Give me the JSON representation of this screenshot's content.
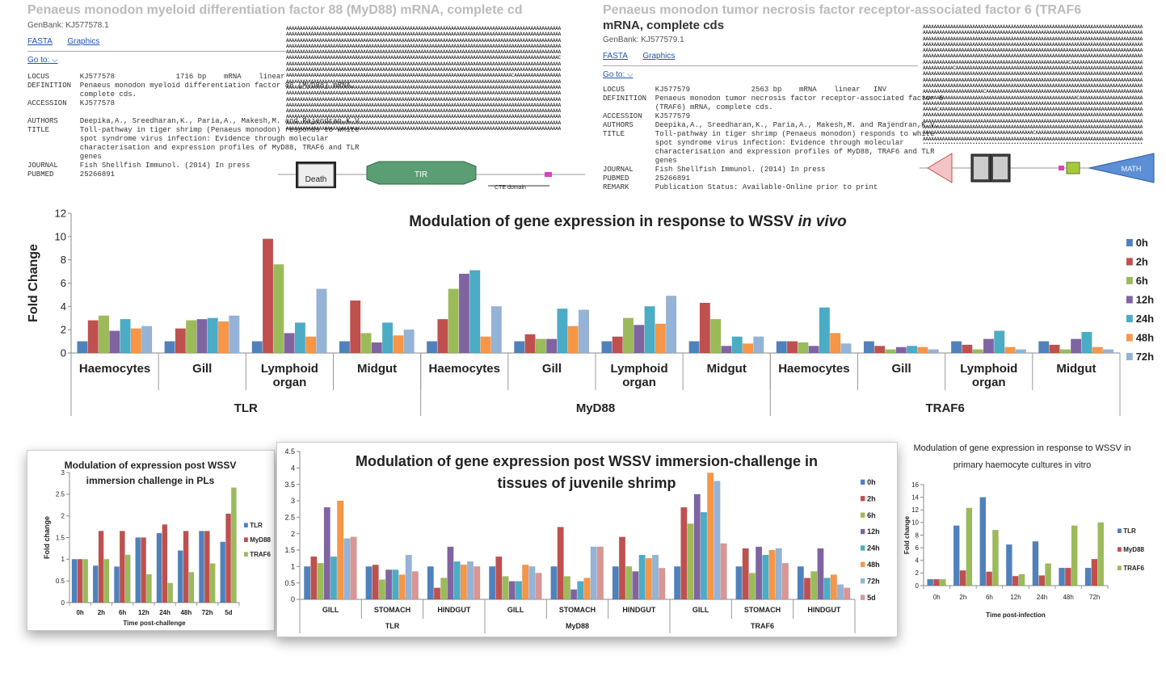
{
  "genbank_left": {
    "title": "Penaeus monodon myeloid differentiation factor 88 (MyD88) mRNA, complete cd",
    "accession_line": "GenBank: KJ577578.1",
    "links": [
      "FASTA",
      "Graphics"
    ],
    "goto": "Go to:",
    "record": "LOCUS       KJ577578              1716 bp    mRNA    linear\nDEFINITION  Penaeus monodon myeloid differentiation factor 88 (MyD88) mRNA,\n            complete cds.\nACCESSION   KJ577578\n\nAUTHORS     Deepika,A., Sreedharan,K., Paria,A., Makesh,M. and Rajendran,K.V.\nTITLE       Toll-pathway in tiger shrimp (Penaeus monodon) responds to white\n            spot syndrome virus infection: Evidence through molecular\n            characterisation and expression profiles of MyD88, TRAF6 and TLR\n            genes\nJOURNAL     Fish Shellfish Immunol. (2014) In press\nPUBMED      25266891",
    "domains": [
      "Death",
      "TIR",
      "CTE domain"
    ]
  },
  "genbank_right": {
    "title": "Penaeus monodon tumor necrosis factor receptor-associated factor 6 (TRAF6",
    "title2": "mRNA, complete cds",
    "accession_line": "GenBank: KJ577579.1",
    "links": [
      "FASTA",
      "Graphics"
    ],
    "goto": "Go to:",
    "record": "LOCUS       KJ577579              2563 bp    mRNA    linear   INV\nDEFINITION  Penaeus monodon tumor necrosis factor receptor-associated factor 6\n            (TRAF6) mRNA, complete cds.\nACCESSION   KJ577579\nAUTHORS     Deepika,A., Sreedharan,K., Paria,A., Makesh,M. and Rajendran,K.V.\nTITLE       Toll-pathway in tiger shrimp (Penaeus monodon) responds to white\n            spot syndrome virus infection: Evidence through molecular\n            characterisation and expression profiles of MyD88, TRAF6 and TLR\n            genes\nJOURNAL     Fish Shellfish Immunol. (2014) In press\nPUBMED      25266891\nREMARK      Publication Status: Available-Online prior to print",
    "domains": [
      "MATH"
    ]
  },
  "chart_data": [
    {
      "id": "invivo",
      "type": "bar",
      "title": "Modulation of gene expression in response to WSSV",
      "title_italic": "in vivo",
      "ylabel": "Fold Change",
      "ylim": [
        0,
        12
      ],
      "yticks": [
        0,
        2,
        4,
        6,
        8,
        10,
        12
      ],
      "groups": [
        "TLR",
        "MyD88",
        "TRAF6"
      ],
      "categories": [
        "Haemocytes",
        "Gill",
        "Lymphoid organ",
        "Midgut",
        "Haemocytes",
        "Gill",
        "Lymphoid organ",
        "Midgut",
        "Haemocytes",
        "Gill",
        "Lymphoid organ",
        "Midgut"
      ],
      "series": [
        {
          "name": "0h",
          "color": "#4f81bd",
          "values": [
            1,
            1,
            1,
            1,
            1,
            1,
            1,
            1,
            1,
            1,
            1,
            1
          ]
        },
        {
          "name": "2h",
          "color": "#c0504d",
          "values": [
            2.8,
            2.1,
            9.8,
            4.5,
            2.9,
            1.6,
            1.4,
            4.3,
            1.0,
            0.6,
            0.7,
            0.7
          ]
        },
        {
          "name": "6h",
          "color": "#9bbb59",
          "values": [
            3.2,
            2.8,
            7.6,
            1.7,
            5.5,
            1.2,
            3.0,
            2.9,
            0.9,
            0.3,
            0.3,
            0.3
          ]
        },
        {
          "name": "12h",
          "color": "#8064a2",
          "values": [
            1.9,
            2.9,
            1.7,
            0.9,
            6.8,
            1.2,
            2.4,
            0.6,
            0.6,
            0.5,
            1.2,
            1.2
          ]
        },
        {
          "name": "24h",
          "color": "#4bacc6",
          "values": [
            2.9,
            3.0,
            2.6,
            2.6,
            7.1,
            3.8,
            4.0,
            1.4,
            3.9,
            0.6,
            1.9,
            1.8
          ]
        },
        {
          "name": "48h",
          "color": "#f79646",
          "values": [
            2.1,
            2.7,
            1.4,
            1.5,
            1.4,
            2.3,
            2.5,
            0.8,
            1.7,
            0.5,
            0.5,
            0.5
          ]
        },
        {
          "name": "72h",
          "color": "#95b3d7",
          "values": [
            2.3,
            3.2,
            5.5,
            2.0,
            4.0,
            3.7,
            4.9,
            1.4,
            0.8,
            0.3,
            0.3,
            0.3
          ]
        }
      ]
    },
    {
      "id": "pls",
      "type": "bar",
      "title": "Modulation of expression post WSSV immersion challenge in PLs",
      "title_lines": [
        "Modulation of expression post WSSV",
        "immersion challenge in PLs"
      ],
      "ylabel": "Fold change",
      "xlabel": "Time post-challenge",
      "ylim": [
        0,
        3
      ],
      "yticks": [
        0,
        0.5,
        1,
        1.5,
        2,
        2.5,
        3
      ],
      "categories": [
        "0h",
        "2h",
        "6h",
        "12h",
        "24h",
        "48h",
        "72h",
        "5d"
      ],
      "series": [
        {
          "name": "TLR",
          "color": "#4f81bd",
          "values": [
            1.0,
            0.85,
            0.83,
            1.5,
            1.6,
            1.2,
            1.65,
            1.4
          ]
        },
        {
          "name": "MyD88",
          "color": "#c0504d",
          "values": [
            1.0,
            1.65,
            1.65,
            1.5,
            1.8,
            1.65,
            1.65,
            2.05
          ]
        },
        {
          "name": "TRAF6",
          "color": "#9bbb59",
          "values": [
            1.0,
            1.0,
            1.1,
            0.65,
            0.45,
            0.7,
            0.9,
            2.65
          ]
        }
      ]
    },
    {
      "id": "juvenile",
      "type": "bar",
      "title": "Modulation of gene expression post WSSV immersion-challenge in tissues of juvenile shrimp",
      "title_lines": [
        "Modulation of gene expression post WSSV immersion-challenge in",
        "tissues of juvenile shrimp"
      ],
      "ylim": [
        0,
        4.5
      ],
      "yticks": [
        0,
        0.5,
        1,
        1.5,
        2,
        2.5,
        3,
        3.5,
        4,
        4.5
      ],
      "groups": [
        "TLR",
        "MyD88",
        "TRAF6"
      ],
      "categories": [
        "GILL",
        "STOMACH",
        "HINDGUT",
        "GILL",
        "STOMACH",
        "HINDGUT",
        "GILL",
        "STOMACH",
        "HINDGUT"
      ],
      "series": [
        {
          "name": "0h",
          "color": "#4f81bd",
          "values": [
            1,
            1,
            1,
            1,
            1,
            1,
            1,
            1,
            1
          ]
        },
        {
          "name": "2h",
          "color": "#c0504d",
          "values": [
            1.3,
            1.05,
            0.35,
            1.3,
            2.2,
            1.9,
            2.8,
            1.55,
            0.65
          ]
        },
        {
          "name": "6h",
          "color": "#9bbb59",
          "values": [
            1.1,
            0.6,
            0.65,
            0.7,
            0.7,
            1.0,
            2.3,
            0.8,
            0.85
          ]
        },
        {
          "name": "12h",
          "color": "#8064a2",
          "values": [
            2.8,
            0.9,
            1.6,
            0.55,
            0.3,
            0.85,
            3.2,
            1.6,
            1.55
          ]
        },
        {
          "name": "24h",
          "color": "#4bacc6",
          "values": [
            1.3,
            0.9,
            1.15,
            0.55,
            0.55,
            1.35,
            2.65,
            1.35,
            0.65
          ]
        },
        {
          "name": "48h",
          "color": "#f79646",
          "values": [
            3.0,
            0.75,
            1.05,
            1.05,
            0.65,
            1.25,
            3.85,
            1.5,
            0.75
          ]
        },
        {
          "name": "72h",
          "color": "#95b3d7",
          "values": [
            1.85,
            1.35,
            1.15,
            1.0,
            1.6,
            1.35,
            3.6,
            1.55,
            0.45
          ]
        },
        {
          "name": "5d",
          "color": "#d99694",
          "values": [
            1.9,
            0.85,
            1.0,
            0.8,
            1.6,
            0.95,
            1.7,
            1.1,
            0.35
          ]
        }
      ]
    },
    {
      "id": "invitro",
      "type": "bar",
      "title": "Modulation of gene expression in response to WSSV in primary haemocyte cultures in vitro",
      "title_lines": [
        "Modulation of gene expression in response to WSSV in",
        "primary haemocyte cultures in vitro"
      ],
      "ylabel": "Fold change",
      "xlabel": "Time post-infection",
      "ylim": [
        0,
        16
      ],
      "yticks": [
        0,
        2,
        4,
        6,
        8,
        10,
        12,
        14,
        16
      ],
      "categories": [
        "0h",
        "2h",
        "6h",
        "12h",
        "24h",
        "48h",
        "72h"
      ],
      "series": [
        {
          "name": "TLR",
          "color": "#4f81bd",
          "values": [
            1,
            9.5,
            14,
            6.5,
            7,
            2.8,
            2.8
          ]
        },
        {
          "name": "MyD88",
          "color": "#c0504d",
          "values": [
            1,
            2.4,
            2.2,
            1.5,
            1.6,
            2.8,
            4.2
          ]
        },
        {
          "name": "TRAF6",
          "color": "#9bbb59",
          "values": [
            1,
            12.3,
            8.8,
            1.8,
            3.5,
            9.5,
            10
          ]
        }
      ]
    }
  ]
}
